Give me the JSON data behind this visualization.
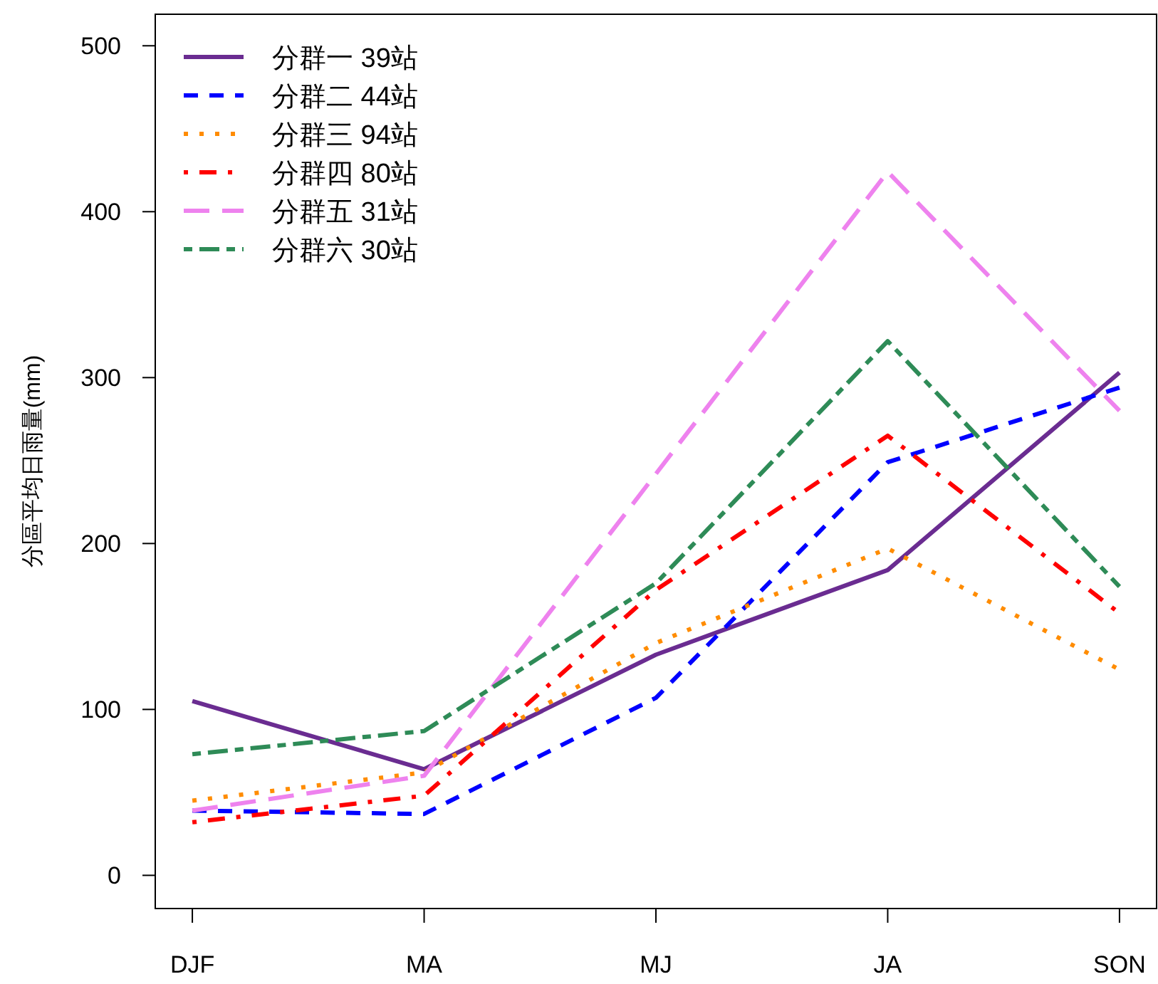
{
  "chart_data": {
    "type": "line",
    "ylabel": "分區平均日雨量(mm)",
    "categories": [
      "DJF",
      "MA",
      "MJ",
      "JA",
      "SON"
    ],
    "ylim": [
      -20,
      519
    ],
    "yticks": [
      0,
      100,
      200,
      300,
      400,
      500
    ],
    "legend": "top left",
    "series": [
      {
        "name": "分群一 39站",
        "color": "#6a2c91",
        "line_style": "solid",
        "values": [
          105,
          64,
          133,
          184,
          303
        ]
      },
      {
        "name": "分群二 44站",
        "color": "#0000ff",
        "line_style": "dashed",
        "values": [
          39,
          37,
          107,
          249,
          294
        ]
      },
      {
        "name": "分群三 94站",
        "color": "#ff8c00",
        "line_style": "dotted",
        "values": [
          45,
          62,
          140,
          197,
          124
        ]
      },
      {
        "name": "分群四 80站",
        "color": "#ff0000",
        "line_style": "dashdot",
        "values": [
          32,
          48,
          172,
          265,
          158
        ]
      },
      {
        "name": "分群五 31站",
        "color": "#ee82ee",
        "line_style": "longdash",
        "values": [
          39,
          60,
          242,
          424,
          280
        ]
      },
      {
        "name": "分群六 30站",
        "color": "#2e8b57",
        "line_style": "twodash",
        "values": [
          73,
          87,
          176,
          322,
          174
        ]
      }
    ]
  }
}
